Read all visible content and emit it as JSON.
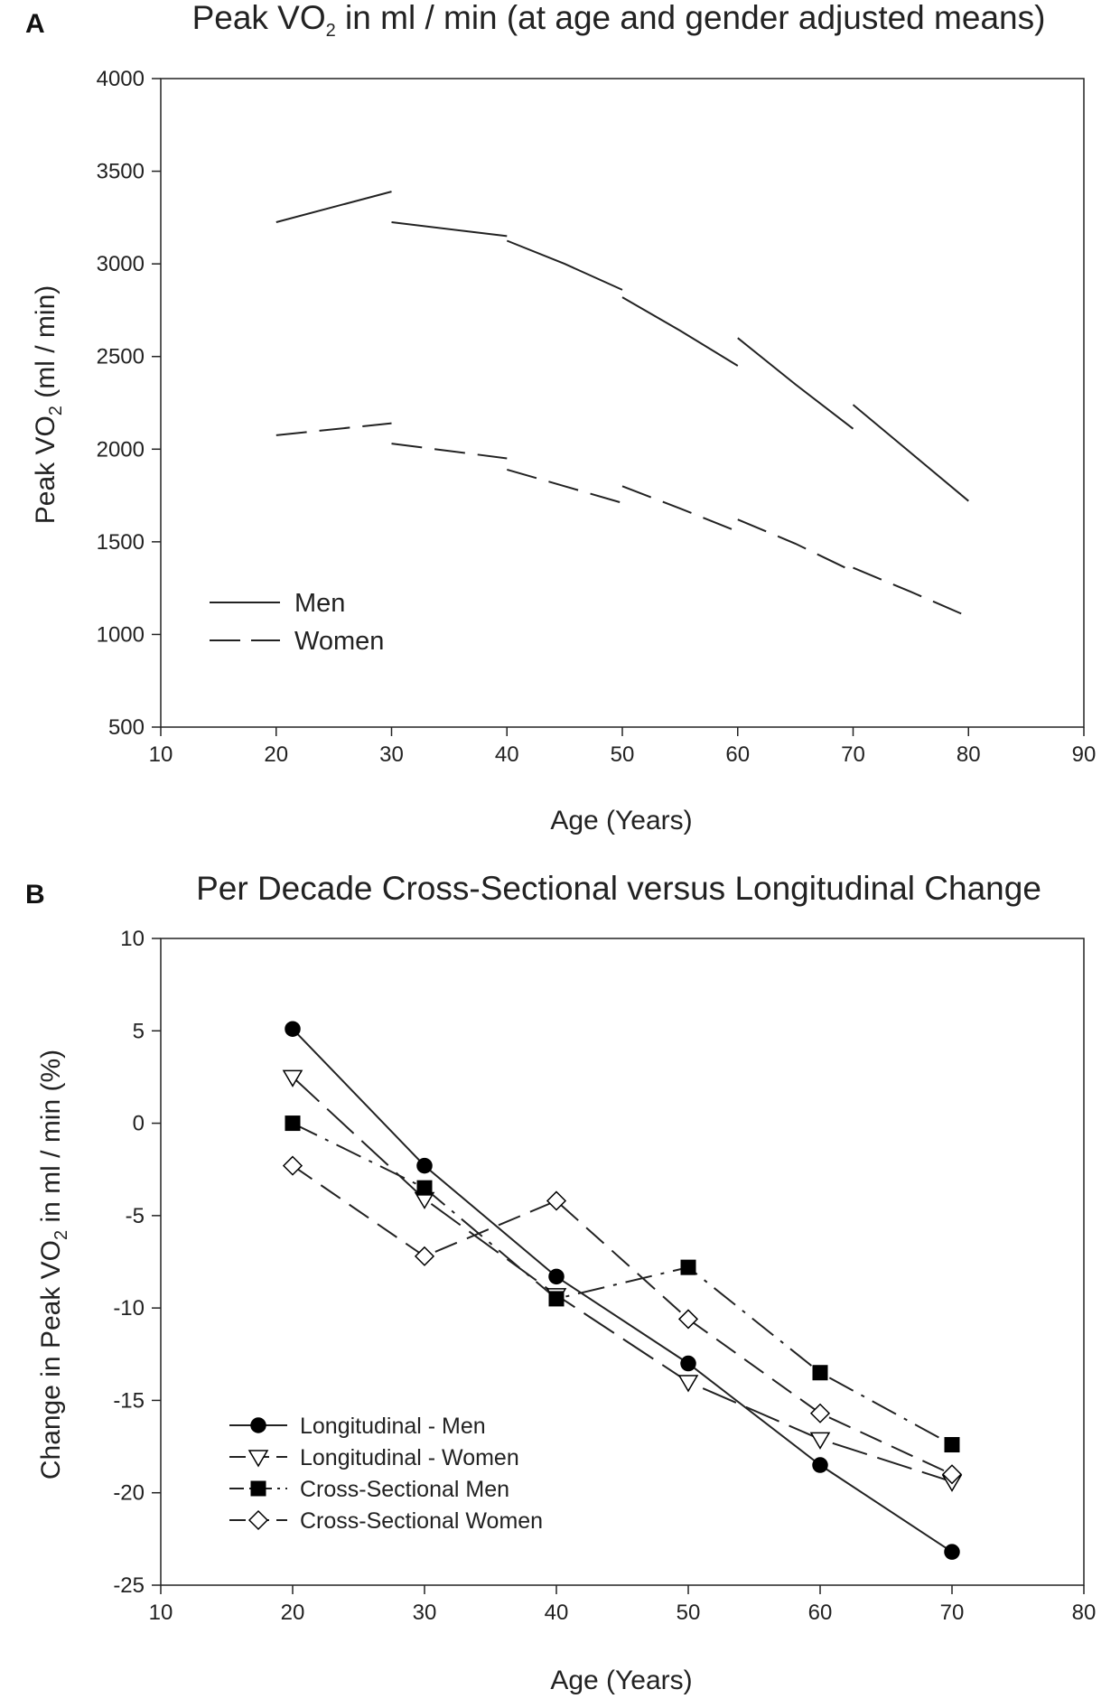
{
  "chart_data": [
    {
      "panel": "A",
      "type": "line",
      "title_parts": [
        "Peak VO",
        "2",
        " in ml / min (at age and gender adjusted means)"
      ],
      "xlabel": "Age (Years)",
      "ylabel_parts": [
        "Peak VO",
        "2",
        " (ml / min)"
      ],
      "xlim": [
        10,
        90
      ],
      "ylim": [
        500,
        4000
      ],
      "xticks": [
        10,
        20,
        30,
        40,
        50,
        60,
        70,
        80,
        90
      ],
      "yticks": [
        500,
        1000,
        1500,
        2000,
        2500,
        3000,
        3500,
        4000
      ],
      "legend_position": "lower-left",
      "grid": false,
      "series": [
        {
          "name": "Men",
          "style": "solid",
          "segments": [
            [
              [
                20,
                3225
              ],
              [
                30,
                3390
              ]
            ],
            [
              [
                30,
                3225
              ],
              [
                40,
                3150
              ]
            ],
            [
              [
                40,
                3125
              ],
              [
                45,
                3000
              ],
              [
                50,
                2860
              ]
            ],
            [
              [
                50,
                2820
              ],
              [
                55,
                2640
              ],
              [
                60,
                2450
              ]
            ],
            [
              [
                60,
                2600
              ],
              [
                65,
                2350
              ],
              [
                70,
                2110
              ]
            ],
            [
              [
                70,
                2240
              ],
              [
                75,
                1980
              ],
              [
                80,
                1720
              ]
            ]
          ]
        },
        {
          "name": "Women",
          "style": "dashed",
          "segments": [
            [
              [
                20,
                2075
              ],
              [
                30,
                2140
              ]
            ],
            [
              [
                30,
                2030
              ],
              [
                40,
                1950
              ]
            ],
            [
              [
                40,
                1890
              ],
              [
                45,
                1800
              ],
              [
                50,
                1710
              ]
            ],
            [
              [
                50,
                1800
              ],
              [
                55,
                1680
              ],
              [
                60,
                1555
              ]
            ],
            [
              [
                60,
                1620
              ],
              [
                65,
                1490
              ],
              [
                70,
                1340
              ]
            ],
            [
              [
                70,
                1360
              ],
              [
                75,
                1230
              ],
              [
                80,
                1095
              ]
            ]
          ]
        }
      ]
    },
    {
      "panel": "B",
      "type": "line",
      "title": "Per Decade Cross-Sectional versus Longitudinal Change",
      "xlabel": "Age (Years)",
      "ylabel_parts": [
        "Change in Peak VO",
        "2",
        " in ml  / min (%)"
      ],
      "xlim": [
        10,
        80
      ],
      "ylim": [
        -25,
        10
      ],
      "xticks": [
        10,
        20,
        30,
        40,
        50,
        60,
        70,
        80
      ],
      "yticks": [
        -25,
        -20,
        -15,
        -10,
        -5,
        0,
        5,
        10
      ],
      "legend_position": "lower-left",
      "grid": false,
      "x": [
        20,
        30,
        40,
        50,
        60,
        70
      ],
      "series": [
        {
          "name": "Longitudinal - Men",
          "marker": "circle-filled",
          "style": "solid",
          "values": [
            5.1,
            -2.3,
            -8.3,
            -13.0,
            -18.5,
            -23.2
          ]
        },
        {
          "name": "Longitudinal - Women",
          "marker": "triangle-down-open",
          "style": "longdash",
          "values": [
            2.5,
            -4.1,
            -9.3,
            -14.0,
            -17.1,
            -19.4
          ]
        },
        {
          "name": "Cross-Sectional Men",
          "marker": "square-filled",
          "style": "dashdot",
          "values": [
            0.0,
            -3.5,
            -9.5,
            -7.8,
            -13.5,
            -17.4
          ]
        },
        {
          "name": "Cross-Sectional Women",
          "marker": "diamond-open",
          "style": "dash",
          "values": [
            -2.3,
            -7.2,
            -4.2,
            -10.6,
            -15.7,
            -19.0
          ]
        }
      ]
    }
  ]
}
